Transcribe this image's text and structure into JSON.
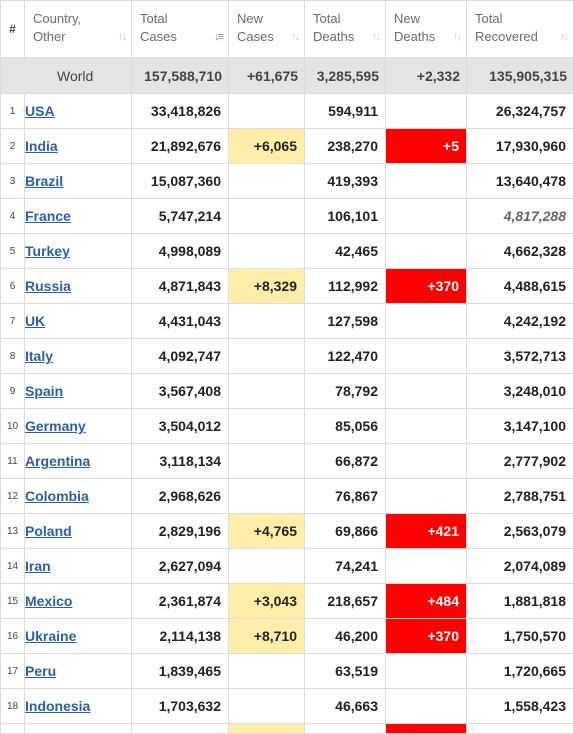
{
  "headers": {
    "hash": "#",
    "country_line1": "Country,",
    "country_line2": "Other",
    "total_cases_line1": "Total",
    "total_cases_line2": "Cases",
    "new_cases_line1": "New",
    "new_cases_line2": "Cases",
    "total_deaths_line1": "Total",
    "total_deaths_line2": "Deaths",
    "new_deaths_line1": "New",
    "new_deaths_line2": "Deaths",
    "total_recovered_line1": "Total",
    "total_recovered_line2": "Recovered"
  },
  "world": {
    "name": "World",
    "total_cases": "157,588,710",
    "new_cases": "+61,675",
    "total_deaths": "3,285,595",
    "new_deaths": "+2,332",
    "total_recovered": "135,905,315"
  },
  "rows": [
    {
      "idx": "1",
      "country": "USA",
      "total_cases": "33,418,826",
      "new_cases": "",
      "total_deaths": "594,911",
      "new_deaths": "",
      "total_recovered": "26,324,757"
    },
    {
      "idx": "2",
      "country": "India",
      "total_cases": "21,892,676",
      "new_cases": "+6,065",
      "total_deaths": "238,270",
      "new_deaths": "+5",
      "total_recovered": "17,930,960"
    },
    {
      "idx": "3",
      "country": "Brazil",
      "total_cases": "15,087,360",
      "new_cases": "",
      "total_deaths": "419,393",
      "new_deaths": "",
      "total_recovered": "13,640,478"
    },
    {
      "idx": "4",
      "country": "France",
      "total_cases": "5,747,214",
      "new_cases": "",
      "total_deaths": "106,101",
      "new_deaths": "",
      "total_recovered": "4,817,288",
      "recovered_italic": true
    },
    {
      "idx": "5",
      "country": "Turkey",
      "total_cases": "4,998,089",
      "new_cases": "",
      "total_deaths": "42,465",
      "new_deaths": "",
      "total_recovered": "4,662,328"
    },
    {
      "idx": "6",
      "country": "Russia",
      "total_cases": "4,871,843",
      "new_cases": "+8,329",
      "total_deaths": "112,992",
      "new_deaths": "+370",
      "total_recovered": "4,488,615"
    },
    {
      "idx": "7",
      "country": "UK",
      "total_cases": "4,431,043",
      "new_cases": "",
      "total_deaths": "127,598",
      "new_deaths": "",
      "total_recovered": "4,242,192"
    },
    {
      "idx": "8",
      "country": "Italy",
      "total_cases": "4,092,747",
      "new_cases": "",
      "total_deaths": "122,470",
      "new_deaths": "",
      "total_recovered": "3,572,713"
    },
    {
      "idx": "9",
      "country": "Spain",
      "total_cases": "3,567,408",
      "new_cases": "",
      "total_deaths": "78,792",
      "new_deaths": "",
      "total_recovered": "3,248,010"
    },
    {
      "idx": "10",
      "country": "Germany",
      "total_cases": "3,504,012",
      "new_cases": "",
      "total_deaths": "85,056",
      "new_deaths": "",
      "total_recovered": "3,147,100"
    },
    {
      "idx": "11",
      "country": "Argentina",
      "total_cases": "3,118,134",
      "new_cases": "",
      "total_deaths": "66,872",
      "new_deaths": "",
      "total_recovered": "2,777,902"
    },
    {
      "idx": "12",
      "country": "Colombia",
      "total_cases": "2,968,626",
      "new_cases": "",
      "total_deaths": "76,867",
      "new_deaths": "",
      "total_recovered": "2,788,751"
    },
    {
      "idx": "13",
      "country": "Poland",
      "total_cases": "2,829,196",
      "new_cases": "+4,765",
      "total_deaths": "69,866",
      "new_deaths": "+421",
      "total_recovered": "2,563,079"
    },
    {
      "idx": "14",
      "country": "Iran",
      "total_cases": "2,627,094",
      "new_cases": "",
      "total_deaths": "74,241",
      "new_deaths": "",
      "total_recovered": "2,074,089"
    },
    {
      "idx": "15",
      "country": "Mexico",
      "total_cases": "2,361,874",
      "new_cases": "+3,043",
      "total_deaths": "218,657",
      "new_deaths": "+484",
      "total_recovered": "1,881,818"
    },
    {
      "idx": "16",
      "country": "Ukraine",
      "total_cases": "2,114,138",
      "new_cases": "+8,710",
      "total_deaths": "46,200",
      "new_deaths": "+370",
      "total_recovered": "1,750,570"
    },
    {
      "idx": "17",
      "country": "Peru",
      "total_cases": "1,839,465",
      "new_cases": "",
      "total_deaths": "63,519",
      "new_deaths": "",
      "total_recovered": "1,720,665"
    },
    {
      "idx": "18",
      "country": "Indonesia",
      "total_cases": "1,703,632",
      "new_cases": "",
      "total_deaths": "46,663",
      "new_deaths": "",
      "total_recovered": "1,558,423"
    }
  ],
  "colors": {
    "new_cases_bg": "#ffeeaa",
    "new_deaths_bg": "#ff0000",
    "link": "#2b5fa8",
    "world_bg": "#e4e4e4"
  },
  "icons": {
    "sort_default": "sort-arrows-icon",
    "sort_active": "sort-desc-icon"
  }
}
